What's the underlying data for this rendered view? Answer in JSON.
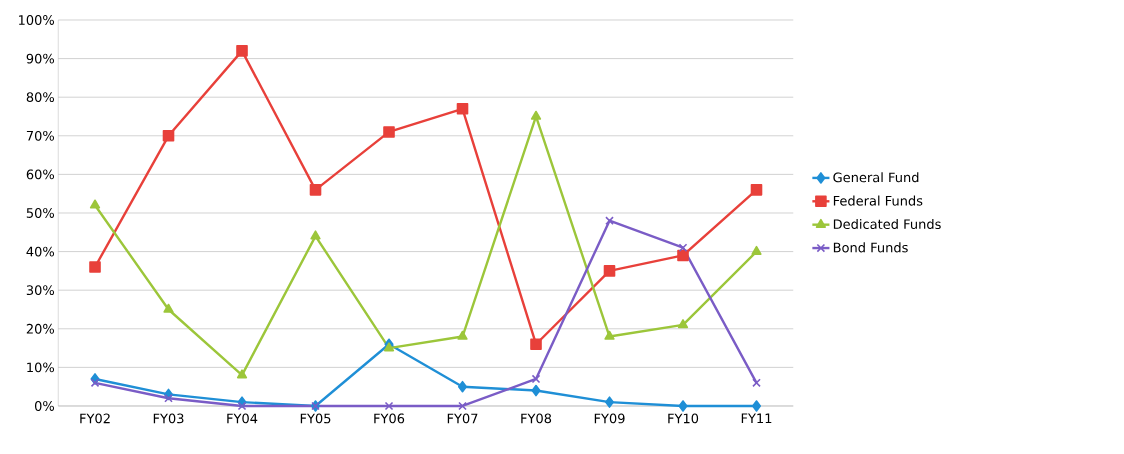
{
  "chart_data": {
    "type": "line",
    "categories": [
      "FY02",
      "FY03",
      "FY04",
      "FY05",
      "FY06",
      "FY07",
      "FY08",
      "FY09",
      "FY10",
      "FY11"
    ],
    "series": [
      {
        "name": "General Fund",
        "color": "#1f8fd6",
        "marker": "diamond",
        "values": [
          7,
          3,
          1,
          0,
          16,
          5,
          4,
          1,
          0,
          0
        ]
      },
      {
        "name": "Federal Funds",
        "color": "#e8403a",
        "marker": "square",
        "values": [
          36,
          70,
          92,
          56,
          71,
          77,
          16,
          35,
          39,
          56
        ]
      },
      {
        "name": "Dedicated Funds",
        "color": "#9cc63a",
        "marker": "triangle",
        "values": [
          52,
          25,
          8,
          44,
          15,
          18,
          75,
          18,
          21,
          40
        ]
      },
      {
        "name": "Bond Funds",
        "color": "#7a5cc6",
        "marker": "cross",
        "values": [
          6,
          2,
          0,
          0,
          0,
          0,
          7,
          48,
          41,
          6
        ]
      }
    ],
    "ylim": [
      0,
      100
    ],
    "yticks": [
      {
        "value": 0,
        "label": "0%"
      },
      {
        "value": 10,
        "label": "10%"
      },
      {
        "value": 20,
        "label": "20%"
      },
      {
        "value": 30,
        "label": "30%"
      },
      {
        "value": 40,
        "label": "40%"
      },
      {
        "value": 50,
        "label": "50%"
      },
      {
        "value": 60,
        "label": "60%"
      },
      {
        "value": 70,
        "label": "70%"
      },
      {
        "value": 80,
        "label": "80%"
      },
      {
        "value": 90,
        "label": "90%"
      },
      {
        "value": 100,
        "label": "100%"
      }
    ],
    "grid": "y",
    "legend": "right",
    "line_style": "solid"
  }
}
